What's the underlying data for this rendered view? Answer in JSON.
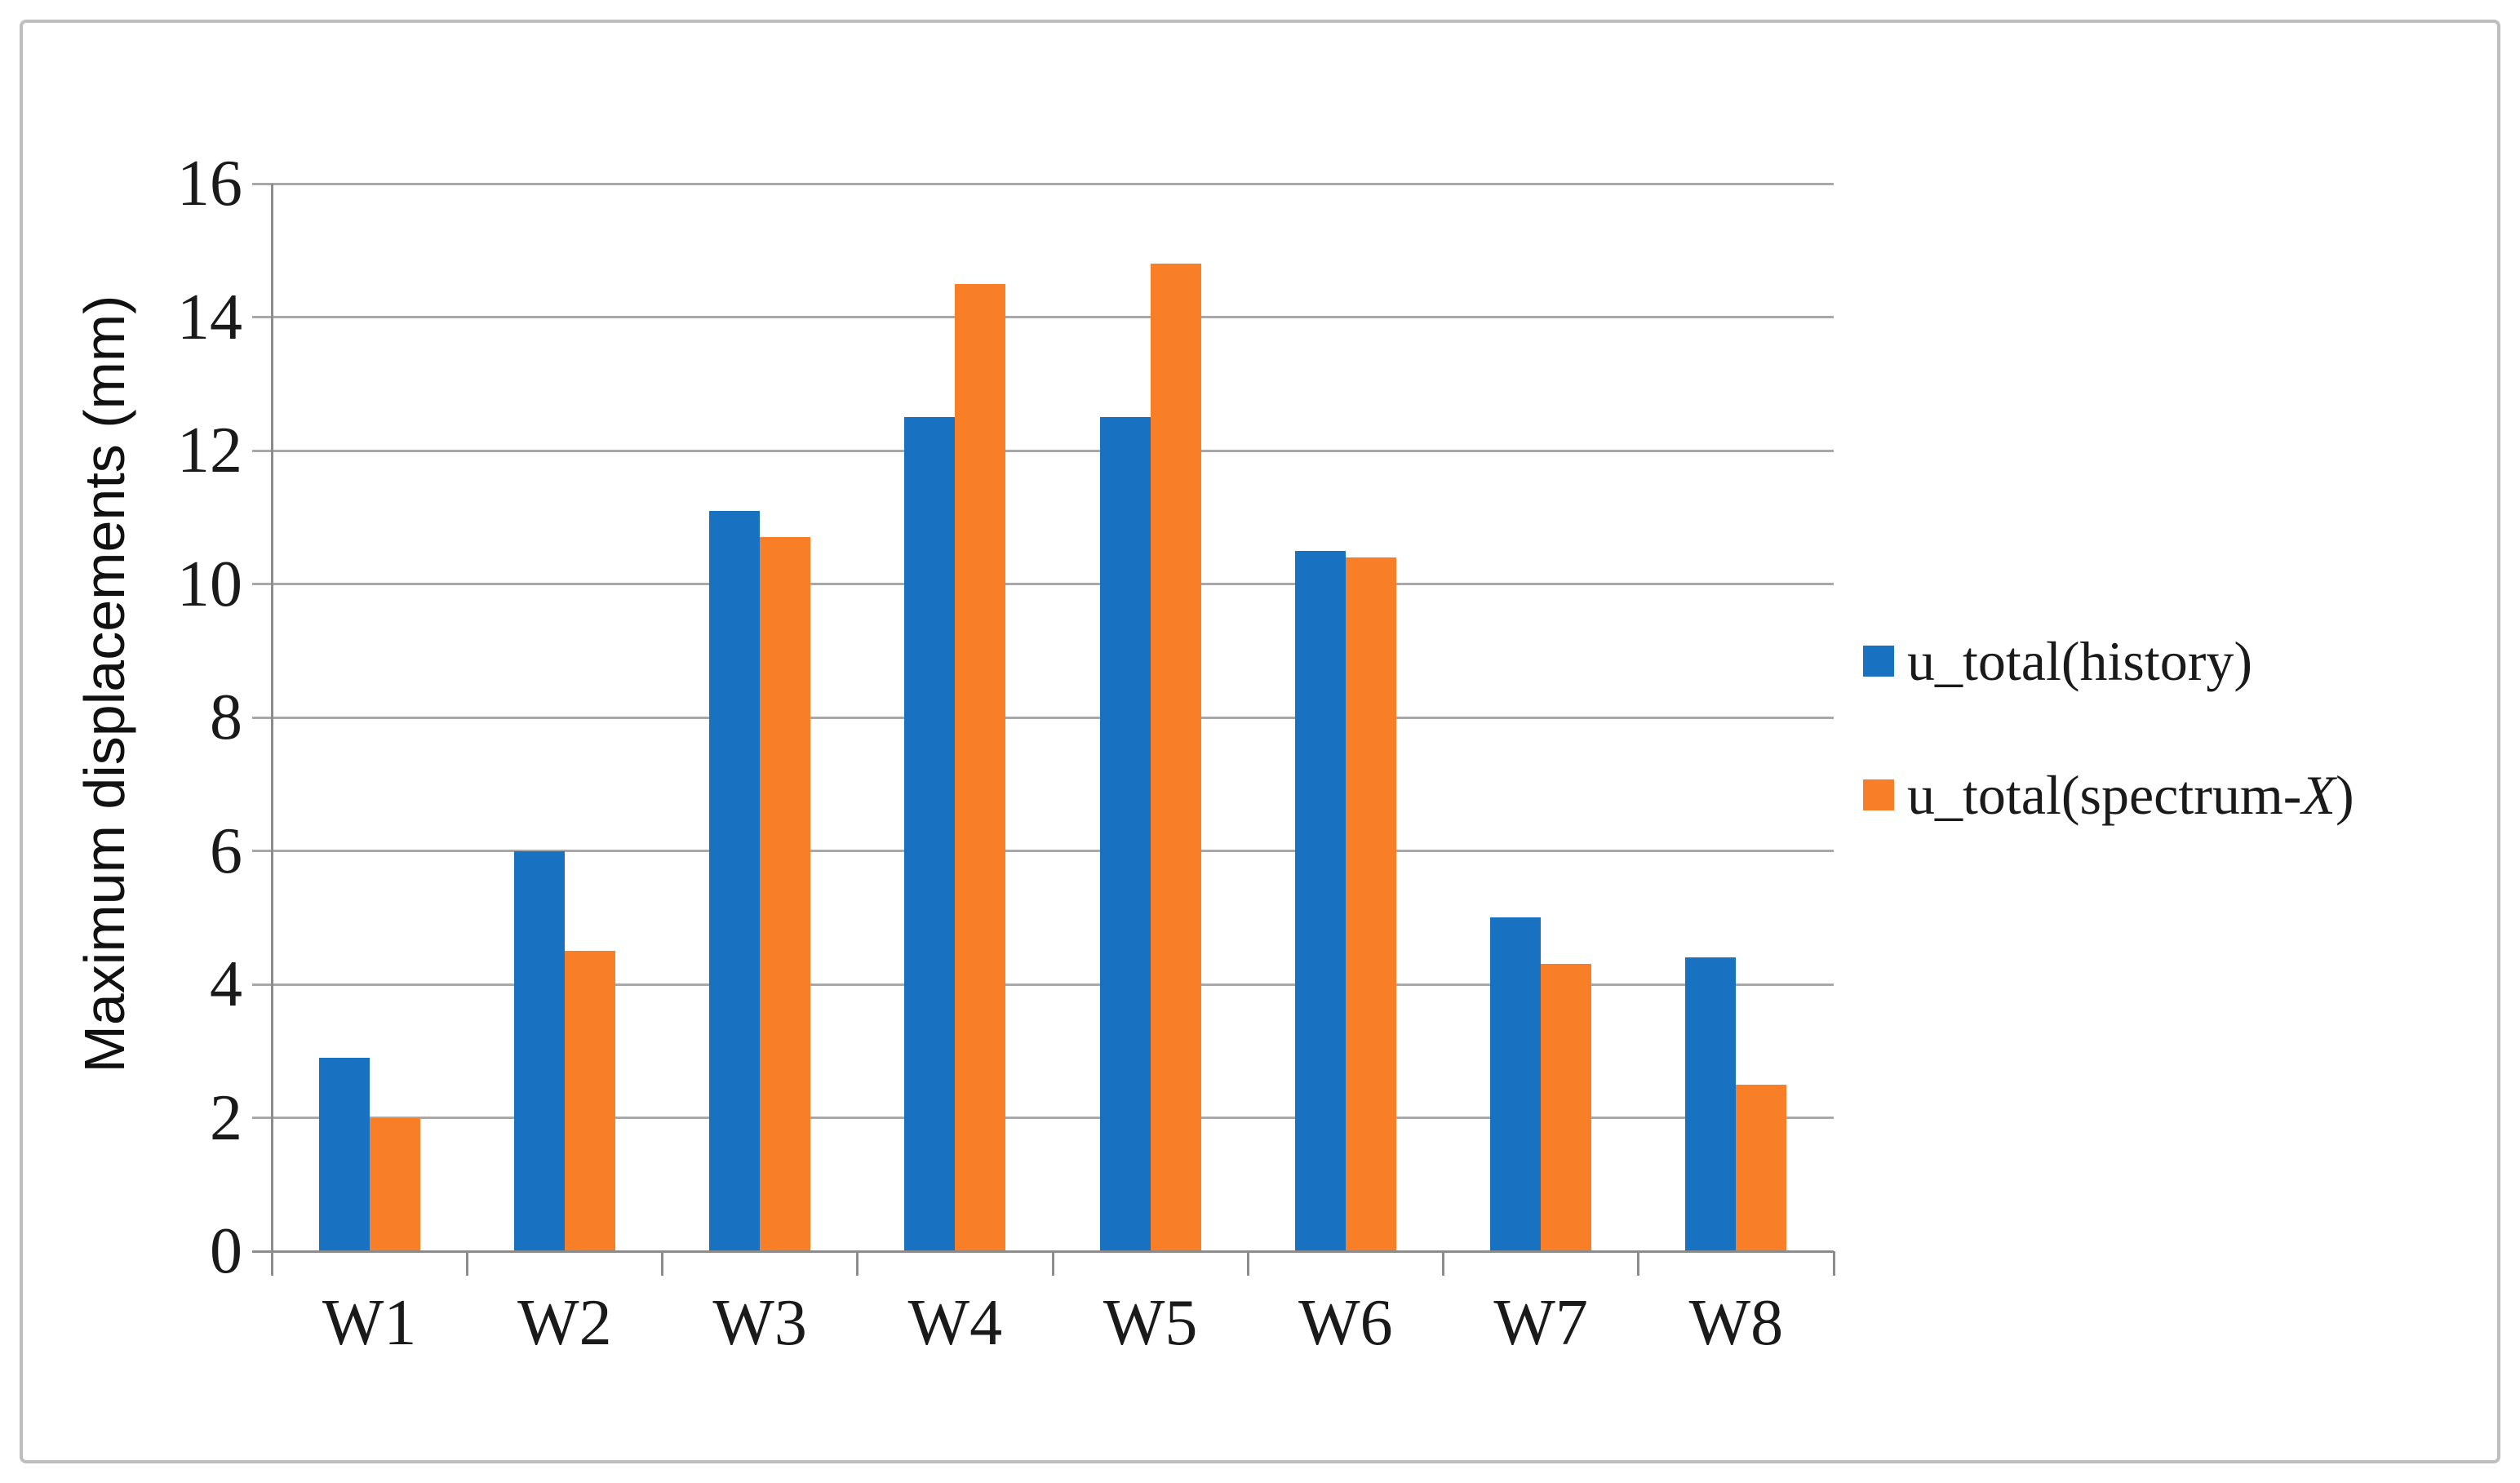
{
  "figure": {
    "background": "#ffffff",
    "border_color": "#bebebe"
  },
  "colors": {
    "gridline": "#a8a8a8",
    "axis": "#8c8c8c",
    "text": "#1a1a1a",
    "series_blue": "#1971c2",
    "series_orange": "#f87e28"
  },
  "legend": {
    "position": "right",
    "items": [
      {
        "label": "u_total(history)",
        "swatch_color": "#1971c2"
      },
      {
        "label_prefix": "u_total(spectrum-",
        "label_italic": "X",
        "label_suffix": ")",
        "swatch_color": "#f87e28"
      }
    ]
  },
  "chart_data": {
    "type": "bar",
    "title": "",
    "xlabel": "",
    "ylabel": "Maximum displacements (mm)",
    "categories": [
      "W1",
      "W2",
      "W3",
      "W4",
      "W5",
      "W6",
      "W7",
      "W8"
    ],
    "series": [
      {
        "name": "u_total(history)",
        "color": "#1971c2",
        "values": [
          2.9,
          6.0,
          11.1,
          12.5,
          12.5,
          10.5,
          5.0,
          4.4
        ]
      },
      {
        "name": "u_total(spectrum-X)",
        "color": "#f87e28",
        "values": [
          2.0,
          4.5,
          10.7,
          14.5,
          14.8,
          10.4,
          4.3,
          2.5
        ]
      }
    ],
    "ylim": [
      0,
      16
    ],
    "yticks": [
      0,
      2,
      4,
      6,
      8,
      10,
      12,
      14,
      16
    ],
    "grid": "horizontal",
    "legend_position": "right"
  }
}
